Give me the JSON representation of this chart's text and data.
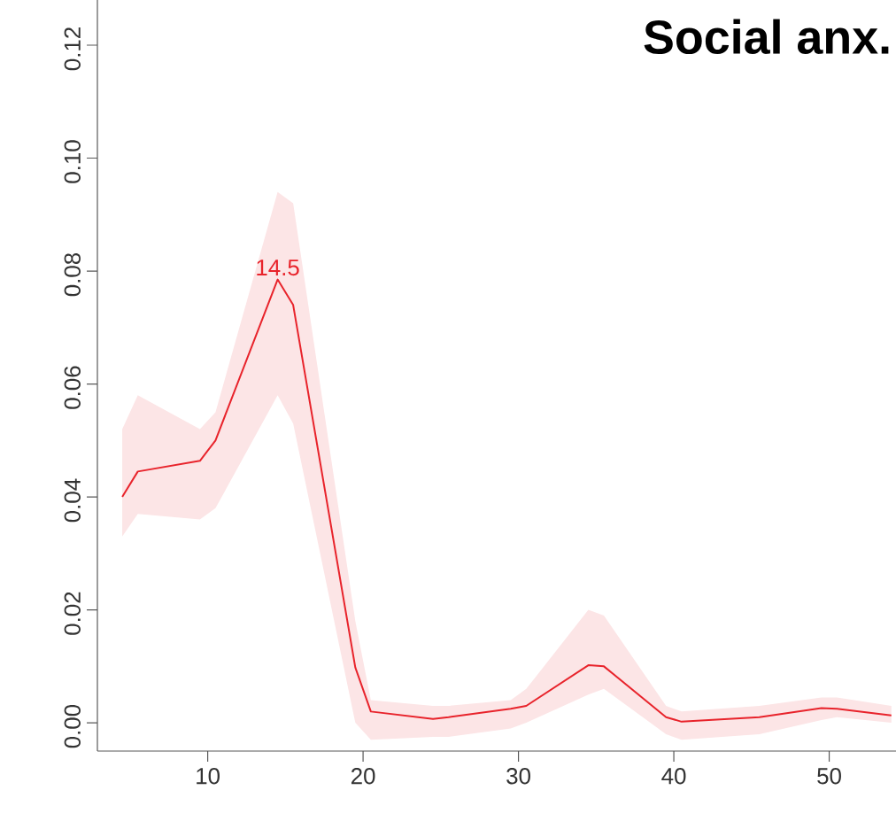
{
  "chart_data": {
    "type": "line",
    "title": "Social anx.",
    "x": [
      4.5,
      5.5,
      9.5,
      10.5,
      14.5,
      15.5,
      19.5,
      20.5,
      24.5,
      25.5,
      29.5,
      30.5,
      34.5,
      35.5,
      39.5,
      40.5,
      45.5,
      49.5,
      50.5,
      54
    ],
    "series": [
      {
        "color": "#e8232b",
        "values": [
          0.04,
          0.0445,
          0.0464,
          0.05,
          0.0785,
          0.074,
          0.0098,
          0.002,
          0.0007,
          0.001,
          0.0025,
          0.003,
          0.0102,
          0.01,
          0.001,
          0.0002,
          0.001,
          0.0026,
          0.0025,
          0.0013
        ],
        "lower": [
          0.033,
          0.037,
          0.036,
          0.038,
          0.058,
          0.053,
          0.0,
          -0.003,
          -0.0025,
          -0.0025,
          -0.001,
          0.0,
          0.005,
          0.006,
          -0.002,
          -0.003,
          -0.002,
          0.0005,
          0.001,
          0.0
        ],
        "upper": [
          0.052,
          0.058,
          0.052,
          0.055,
          0.094,
          0.092,
          0.018,
          0.004,
          0.003,
          0.003,
          0.004,
          0.006,
          0.02,
          0.019,
          0.003,
          0.002,
          0.003,
          0.0045,
          0.0045,
          0.003
        ]
      }
    ],
    "annotations": [
      {
        "text": "14.5",
        "x": 14.5,
        "y": 0.0785
      }
    ],
    "xlim": [
      2.9,
      54.3
    ],
    "ylim": [
      -0.005,
      0.128
    ],
    "xticks": [
      10,
      20,
      30,
      40,
      50
    ],
    "yticks": [
      {
        "value": 0,
        "label": "0.00"
      },
      {
        "value": 0.02,
        "label": "0.02"
      },
      {
        "value": 0.04,
        "label": "0.04"
      },
      {
        "value": 0.06,
        "label": "0.06"
      },
      {
        "value": 0.08,
        "label": "0.08"
      },
      {
        "value": 0.1,
        "label": "0.10"
      },
      {
        "value": 0.12,
        "label": "0.12"
      }
    ],
    "grid": false
  }
}
